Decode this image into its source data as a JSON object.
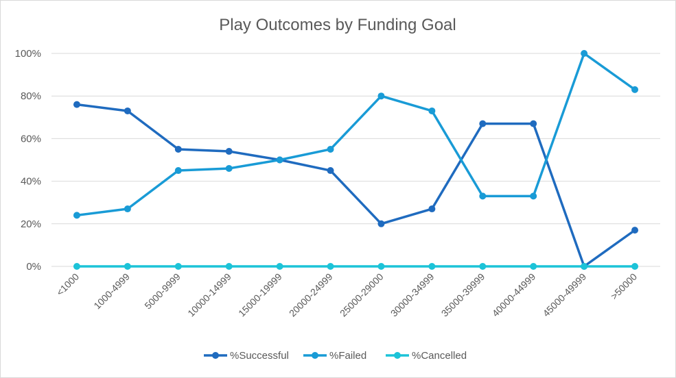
{
  "chart_data": {
    "type": "line",
    "title": "Play Outcomes by Funding Goal",
    "xlabel": "",
    "ylabel": "",
    "categories": [
      "<1000",
      "1000-4999",
      "5000-9999",
      "10000-14999",
      "15000-19999",
      "20000-24999",
      "25000-29000",
      "30000-34999",
      "35000-39999",
      "40000-44999",
      "45000-49999",
      ">50000"
    ],
    "ylim": [
      0,
      100
    ],
    "yticks": [
      0,
      20,
      40,
      60,
      80,
      100
    ],
    "ytick_labels": [
      "0%",
      "20%",
      "40%",
      "60%",
      "80%",
      "100%"
    ],
    "grid": true,
    "legend_position": "bottom",
    "series": [
      {
        "name": "%Successful",
        "color": "#1F6BBF",
        "values": [
          76,
          73,
          55,
          54,
          50,
          45,
          20,
          27,
          67,
          67,
          0,
          17
        ]
      },
      {
        "name": "%Failed",
        "color": "#199BD6",
        "values": [
          24,
          27,
          45,
          46,
          50,
          55,
          80,
          73,
          33,
          33,
          100,
          83
        ]
      },
      {
        "name": "%Cancelled",
        "color": "#1CC3D8",
        "values": [
          0,
          0,
          0,
          0,
          0,
          0,
          0,
          0,
          0,
          0,
          0,
          0
        ]
      }
    ]
  }
}
